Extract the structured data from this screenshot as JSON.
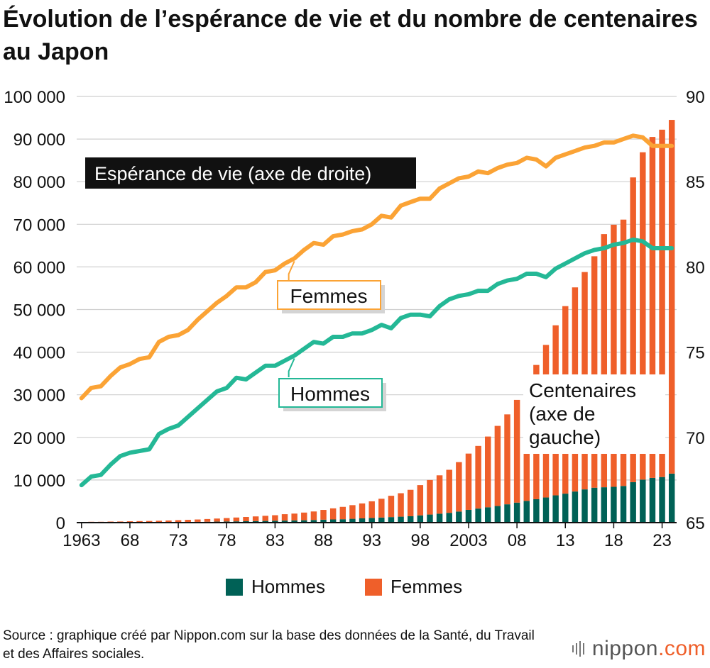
{
  "title": "Évolution de l’espérance de vie et du nombre de centenaires au Japon",
  "chart_data": {
    "type": "bar+line",
    "left_axis": {
      "label": "Centenaires (axe de gauche)",
      "min": 0,
      "max": 100000,
      "ticks": [
        0,
        10000,
        20000,
        30000,
        40000,
        50000,
        60000,
        70000,
        80000,
        90000,
        100000
      ],
      "tick_labels": [
        "0",
        "10 000",
        "20 000",
        "30 000",
        "40 000",
        "50 000",
        "60 000",
        "70 000",
        "80 000",
        "90 000",
        "100 000"
      ]
    },
    "right_axis": {
      "label": "Espérance de vie (axe de droite)",
      "min": 65,
      "max": 90,
      "ticks": [
        65,
        70,
        75,
        80,
        85,
        90
      ],
      "tick_labels": [
        "65",
        "70",
        "75",
        "80",
        "85",
        "90"
      ]
    },
    "x_tick_labels": [
      {
        "year": 1963,
        "label": "1963"
      },
      {
        "year": 1968,
        "label": "68"
      },
      {
        "year": 1973,
        "label": "73"
      },
      {
        "year": 1978,
        "label": "78"
      },
      {
        "year": 1983,
        "label": "83"
      },
      {
        "year": 1988,
        "label": "88"
      },
      {
        "year": 1993,
        "label": "93"
      },
      {
        "year": 1998,
        "label": "98"
      },
      {
        "year": 2003,
        "label": "2003"
      },
      {
        "year": 2008,
        "label": "08"
      },
      {
        "year": 2013,
        "label": "13"
      },
      {
        "year": 2018,
        "label": "18"
      },
      {
        "year": 2023,
        "label": "23"
      }
    ],
    "years": [
      1963,
      1964,
      1965,
      1966,
      1967,
      1968,
      1969,
      1970,
      1971,
      1972,
      1973,
      1974,
      1975,
      1976,
      1977,
      1978,
      1979,
      1980,
      1981,
      1982,
      1983,
      1984,
      1985,
      1986,
      1987,
      1988,
      1989,
      1990,
      1991,
      1992,
      1993,
      1994,
      1995,
      1996,
      1997,
      1998,
      1999,
      2000,
      2001,
      2002,
      2003,
      2004,
      2005,
      2006,
      2007,
      2008,
      2009,
      2010,
      2011,
      2012,
      2013,
      2014,
      2015,
      2016,
      2017,
      2018,
      2019,
      2020,
      2021,
      2022,
      2023,
      2024
    ],
    "centenarians_men": [
      20,
      30,
      40,
      50,
      60,
      70,
      80,
      90,
      100,
      120,
      140,
      160,
      180,
      210,
      240,
      270,
      300,
      330,
      360,
      400,
      440,
      480,
      520,
      560,
      620,
      690,
      750,
      800,
      900,
      1000,
      1100,
      1200,
      1300,
      1400,
      1500,
      1700,
      1900,
      2100,
      2300,
      2600,
      3000,
      3300,
      3600,
      3900,
      4300,
      4700,
      5100,
      5500,
      5900,
      6400,
      6800,
      7300,
      7800,
      8200,
      8300,
      8400,
      8600,
      9500,
      10100,
      10500,
      10700,
      11500
    ],
    "centenarians_women": [
      130,
      170,
      160,
      200,
      210,
      250,
      280,
      300,
      340,
      380,
      440,
      500,
      560,
      640,
      720,
      800,
      900,
      1000,
      1100,
      1200,
      1300,
      1500,
      1600,
      1800,
      2000,
      2300,
      2600,
      2900,
      3200,
      3500,
      3900,
      4400,
      5000,
      5500,
      6200,
      7100,
      8100,
      9000,
      10100,
      11600,
      13200,
      14700,
      16600,
      18800,
      21100,
      24100,
      27500,
      31500,
      35800,
      39900,
      44000,
      47900,
      51000,
      54300,
      59400,
      61500,
      62500,
      71500,
      76800,
      80000,
      81500,
      83000
    ],
    "life_expectancy": {
      "women": [
        72.3,
        72.9,
        73.0,
        73.6,
        74.1,
        74.3,
        74.6,
        74.7,
        75.6,
        75.9,
        76.0,
        76.3,
        76.9,
        77.4,
        77.9,
        78.3,
        78.8,
        78.8,
        79.1,
        79.7,
        79.8,
        80.2,
        80.5,
        81.0,
        81.4,
        81.3,
        81.8,
        81.9,
        82.1,
        82.2,
        82.5,
        83.0,
        82.9,
        83.6,
        83.8,
        84.0,
        84.0,
        84.6,
        84.9,
        85.2,
        85.3,
        85.6,
        85.5,
        85.8,
        86.0,
        86.1,
        86.4,
        86.3,
        85.9,
        86.4,
        86.6,
        86.8,
        87.0,
        87.1,
        87.3,
        87.3,
        87.5,
        87.7,
        87.6,
        87.1,
        87.1,
        87.1
      ],
      "men": [
        67.2,
        67.7,
        67.8,
        68.4,
        68.9,
        69.1,
        69.2,
        69.3,
        70.2,
        70.5,
        70.7,
        71.2,
        71.7,
        72.2,
        72.7,
        72.9,
        73.5,
        73.4,
        73.8,
        74.2,
        74.2,
        74.5,
        74.8,
        75.2,
        75.6,
        75.5,
        75.9,
        75.9,
        76.1,
        76.1,
        76.3,
        76.6,
        76.4,
        77.0,
        77.2,
        77.2,
        77.1,
        77.7,
        78.1,
        78.3,
        78.4,
        78.6,
        78.6,
        79.0,
        79.2,
        79.3,
        79.6,
        79.6,
        79.4,
        79.9,
        80.2,
        80.5,
        80.8,
        81.0,
        81.1,
        81.3,
        81.4,
        81.6,
        81.5,
        81.1,
        81.1,
        81.1
      ]
    },
    "annotations": {
      "women_label": "Femmes",
      "men_label": "Hommes",
      "le_box": "Espérance de vie (axe de droite)",
      "cent_lines": [
        "Centenaires",
        "(axe de",
        "gauche)"
      ]
    },
    "legend": [
      {
        "label": "Hommes",
        "color": "#006156"
      },
      {
        "label": "Femmes",
        "color": "#ef5f2a"
      }
    ],
    "colors": {
      "men_bar": "#006156",
      "women_bar": "#ef5f2a",
      "women_line": "#fba335",
      "men_line": "#24b896",
      "grid": "#cfcfcf"
    }
  },
  "source": "Source : graphique créé par Nippon.com sur la base des données de la Santé, du Travail et des Affaires sociales.",
  "brand": "nippon",
  "brand_tld": ".com"
}
